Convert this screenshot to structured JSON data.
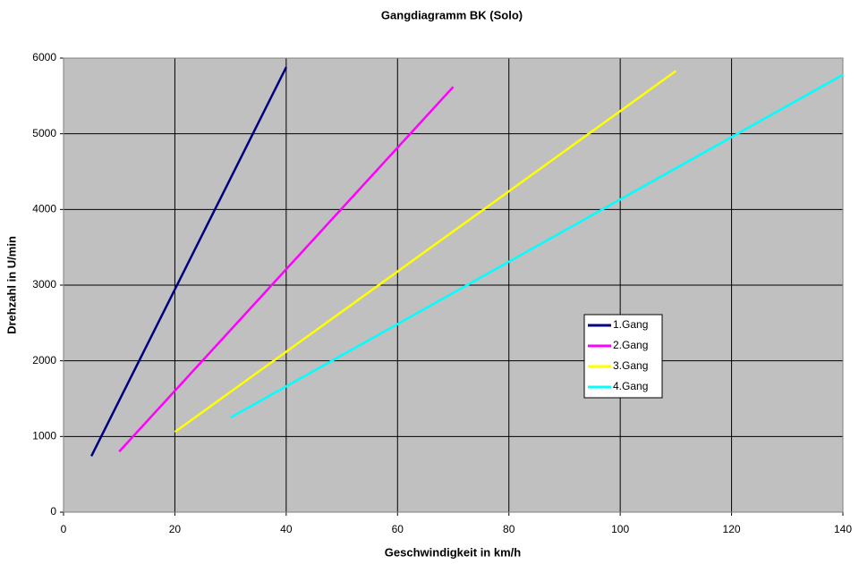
{
  "chart_data": {
    "type": "line",
    "title": "Gangdiagramm BK (Solo)",
    "x_label": "Geschwindigkeit in km/h",
    "y_label": "Drehzahl in U/min",
    "series": [
      {
        "name": "1.Gang",
        "color": "#000080",
        "x": [
          5,
          40
        ],
        "values": [
          740,
          5880
        ]
      },
      {
        "name": "2.Gang",
        "color": "#ff00ff",
        "x": [
          10,
          70
        ],
        "values": [
          800,
          5620
        ]
      },
      {
        "name": "3.Gang",
        "color": "#ffff00",
        "x": [
          20,
          110
        ],
        "values": [
          1060,
          5830
        ]
      },
      {
        "name": "4.Gang",
        "color": "#00ffff",
        "x": [
          30,
          140
        ],
        "values": [
          1250,
          5780
        ]
      }
    ],
    "xlim": [
      0,
      140
    ],
    "xticks": [
      0,
      20,
      40,
      60,
      80,
      100,
      120,
      140
    ],
    "ylim": [
      0,
      6000
    ],
    "yticks": [
      0,
      1000,
      2000,
      3000,
      4000,
      5000,
      6000
    ],
    "grid": true,
    "plot_background": "#c0c0c0"
  }
}
